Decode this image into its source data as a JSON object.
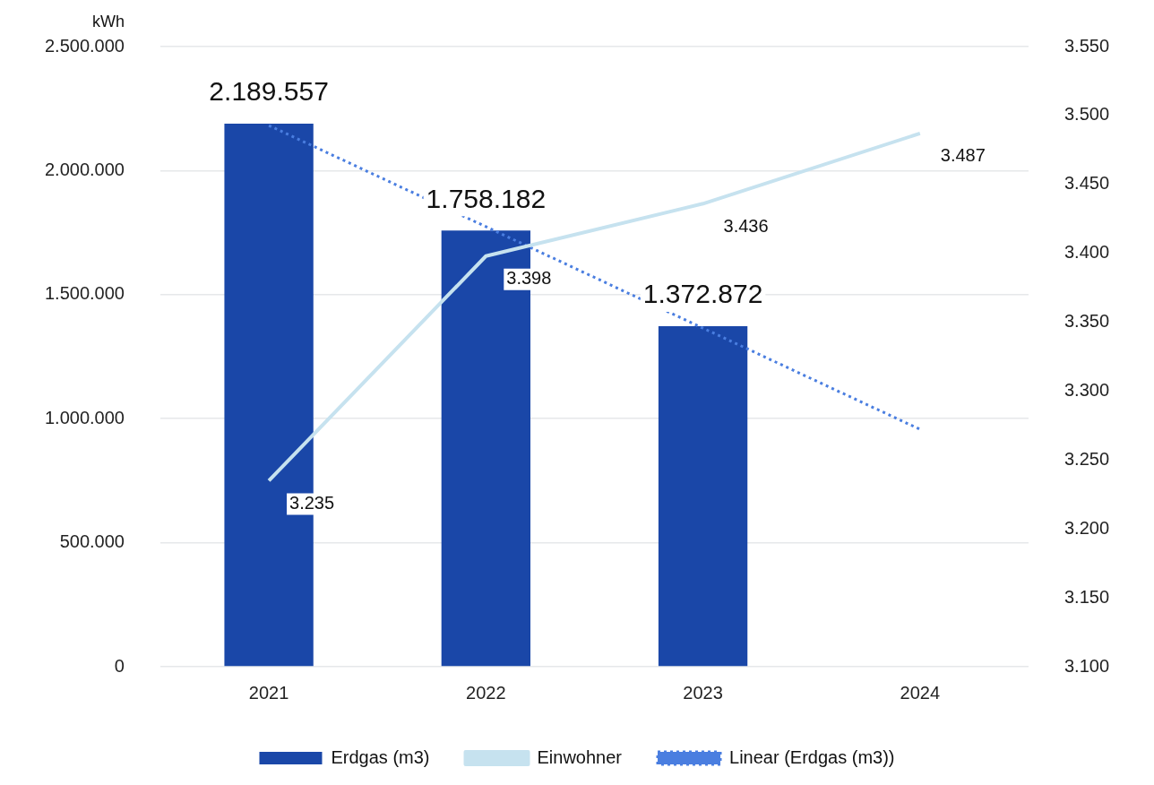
{
  "chart_data": {
    "type": "bar",
    "ylabel": "kWh",
    "categories": [
      "2021",
      "2022",
      "2023",
      "2024"
    ],
    "series": [
      {
        "name": "Erdgas (m3)",
        "color": "#1a47a8",
        "values": [
          2189557,
          1758182,
          1372872,
          null
        ],
        "value_labels": [
          "2.189.557",
          "1.758.182",
          "1.372.872",
          null
        ]
      },
      {
        "name": "Einwohner",
        "type": "line",
        "axis": "y2",
        "color": "#c6e2ef",
        "line_style": "solid",
        "values": [
          3235,
          3398,
          3436,
          3487
        ],
        "value_labels": [
          "3.235",
          "3.398",
          "3.436",
          "3.487"
        ]
      },
      {
        "name": "Linear (Erdgas (m3))",
        "type": "line",
        "color": "#4a7ee0",
        "line_style": "dotted",
        "values": [
          2182000,
          1774000,
          1365000,
          957000
        ]
      }
    ],
    "ylim": [
      0,
      2500000
    ],
    "yticks": [
      {
        "value": 0,
        "label": "0"
      },
      {
        "value": 500000,
        "label": "500.000"
      },
      {
        "value": 1000000,
        "label": "1.000.000"
      },
      {
        "value": 1500000,
        "label": "1.500.000"
      },
      {
        "value": 2000000,
        "label": "2.000.000"
      },
      {
        "value": 2500000,
        "label": "2.500.000"
      }
    ],
    "y2lim": [
      3100,
      3550
    ],
    "y2ticks": [
      {
        "value": 3100,
        "label": "3.100"
      },
      {
        "value": 3150,
        "label": "3.150"
      },
      {
        "value": 3200,
        "label": "3.200"
      },
      {
        "value": 3250,
        "label": "3.250"
      },
      {
        "value": 3300,
        "label": "3.300"
      },
      {
        "value": 3350,
        "label": "3.350"
      },
      {
        "value": 3400,
        "label": "3.400"
      },
      {
        "value": 3450,
        "label": "3.450"
      },
      {
        "value": 3500,
        "label": "3.500"
      },
      {
        "value": 3550,
        "label": "3.550"
      }
    ],
    "grid": "y",
    "legend": "bottom",
    "marker": "none"
  }
}
